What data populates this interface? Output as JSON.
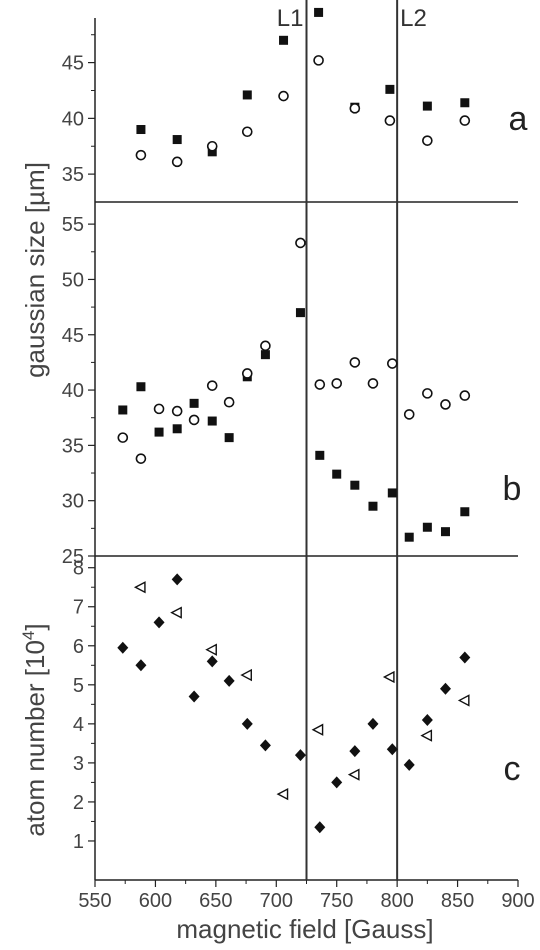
{
  "chart_data": [
    {
      "type": "scatter",
      "panel_label": "a",
      "xlim": [
        550,
        900
      ],
      "ylim": [
        32.5,
        49
      ],
      "yticks": [
        35,
        40,
        45
      ],
      "series": [
        {
          "marker": "filled-square",
          "x": [
            588,
            618,
            647,
            676,
            706,
            735,
            765,
            794,
            825,
            856
          ],
          "y": [
            39.0,
            38.1,
            37.0,
            42.1,
            47.0,
            49.5,
            41.0,
            42.6,
            41.1,
            41.4
          ]
        },
        {
          "marker": "open-circle",
          "x": [
            588,
            618,
            647,
            676,
            706,
            735,
            765,
            794,
            825,
            856
          ],
          "y": [
            36.7,
            36.1,
            37.5,
            38.8,
            42.0,
            45.2,
            40.9,
            39.8,
            38.0,
            39.8
          ]
        }
      ]
    },
    {
      "type": "scatter",
      "panel_label": "b",
      "xlim": [
        550,
        900
      ],
      "ylim": [
        25,
        57
      ],
      "yticks": [
        25,
        30,
        35,
        40,
        45,
        50,
        55
      ],
      "series": [
        {
          "marker": "filled-square",
          "x": [
            573,
            588,
            603,
            618,
            632,
            647,
            661,
            676,
            691,
            720,
            736,
            750,
            765,
            780,
            796,
            810,
            825,
            840,
            856
          ],
          "y": [
            38.2,
            40.3,
            36.2,
            36.5,
            38.8,
            37.2,
            35.7,
            41.2,
            43.2,
            47.0,
            34.1,
            32.4,
            31.4,
            29.5,
            30.7,
            26.7,
            27.6,
            27.2,
            29.0
          ]
        },
        {
          "marker": "open-circle",
          "x": [
            573,
            588,
            603,
            618,
            632,
            647,
            661,
            676,
            691,
            720,
            736,
            750,
            765,
            780,
            796,
            810,
            825,
            840,
            856
          ],
          "y": [
            35.7,
            33.8,
            38.3,
            38.1,
            37.3,
            40.4,
            38.9,
            41.5,
            44.0,
            53.3,
            40.5,
            40.6,
            42.5,
            40.6,
            42.4,
            37.8,
            39.7,
            38.7,
            39.5
          ]
        }
      ]
    },
    {
      "type": "scatter",
      "panel_label": "c",
      "xlim": [
        550,
        900
      ],
      "ylim": [
        0,
        8.3
      ],
      "yticks": [
        1,
        2,
        3,
        4,
        5,
        6,
        7,
        8
      ],
      "series": [
        {
          "marker": "filled-diamond",
          "x": [
            573,
            588,
            603,
            618,
            632,
            647,
            661,
            676,
            691,
            720,
            736,
            750,
            765,
            780,
            796,
            810,
            825,
            840,
            856
          ],
          "y": [
            5.95,
            5.5,
            6.6,
            7.7,
            4.7,
            5.6,
            5.1,
            4.0,
            3.45,
            3.2,
            1.35,
            2.5,
            3.3,
            4.0,
            3.35,
            2.95,
            4.1,
            4.9,
            5.7
          ]
        },
        {
          "marker": "open-triangle-left",
          "x": [
            588,
            618,
            647,
            676,
            706,
            735,
            765,
            794,
            825,
            856
          ],
          "y": [
            7.5,
            6.85,
            5.9,
            5.25,
            2.2,
            3.85,
            2.7,
            5.2,
            3.7,
            4.6
          ]
        }
      ]
    }
  ],
  "x_axis": {
    "label": "magnetic field [Gauss]",
    "ticks": [
      550,
      600,
      650,
      700,
      750,
      800,
      850,
      900
    ]
  },
  "y_labels": {
    "gaussian": "gaussian size [µm]",
    "atom_prefix": "atom number [10",
    "atom_exp": "4",
    "atom_suffix": "]"
  },
  "lines": [
    {
      "label": "L1",
      "x": 725
    },
    {
      "label": "L2",
      "x": 800
    }
  ],
  "colors": {
    "axis": "#222222",
    "marker": "#111111",
    "text": "#444444"
  }
}
